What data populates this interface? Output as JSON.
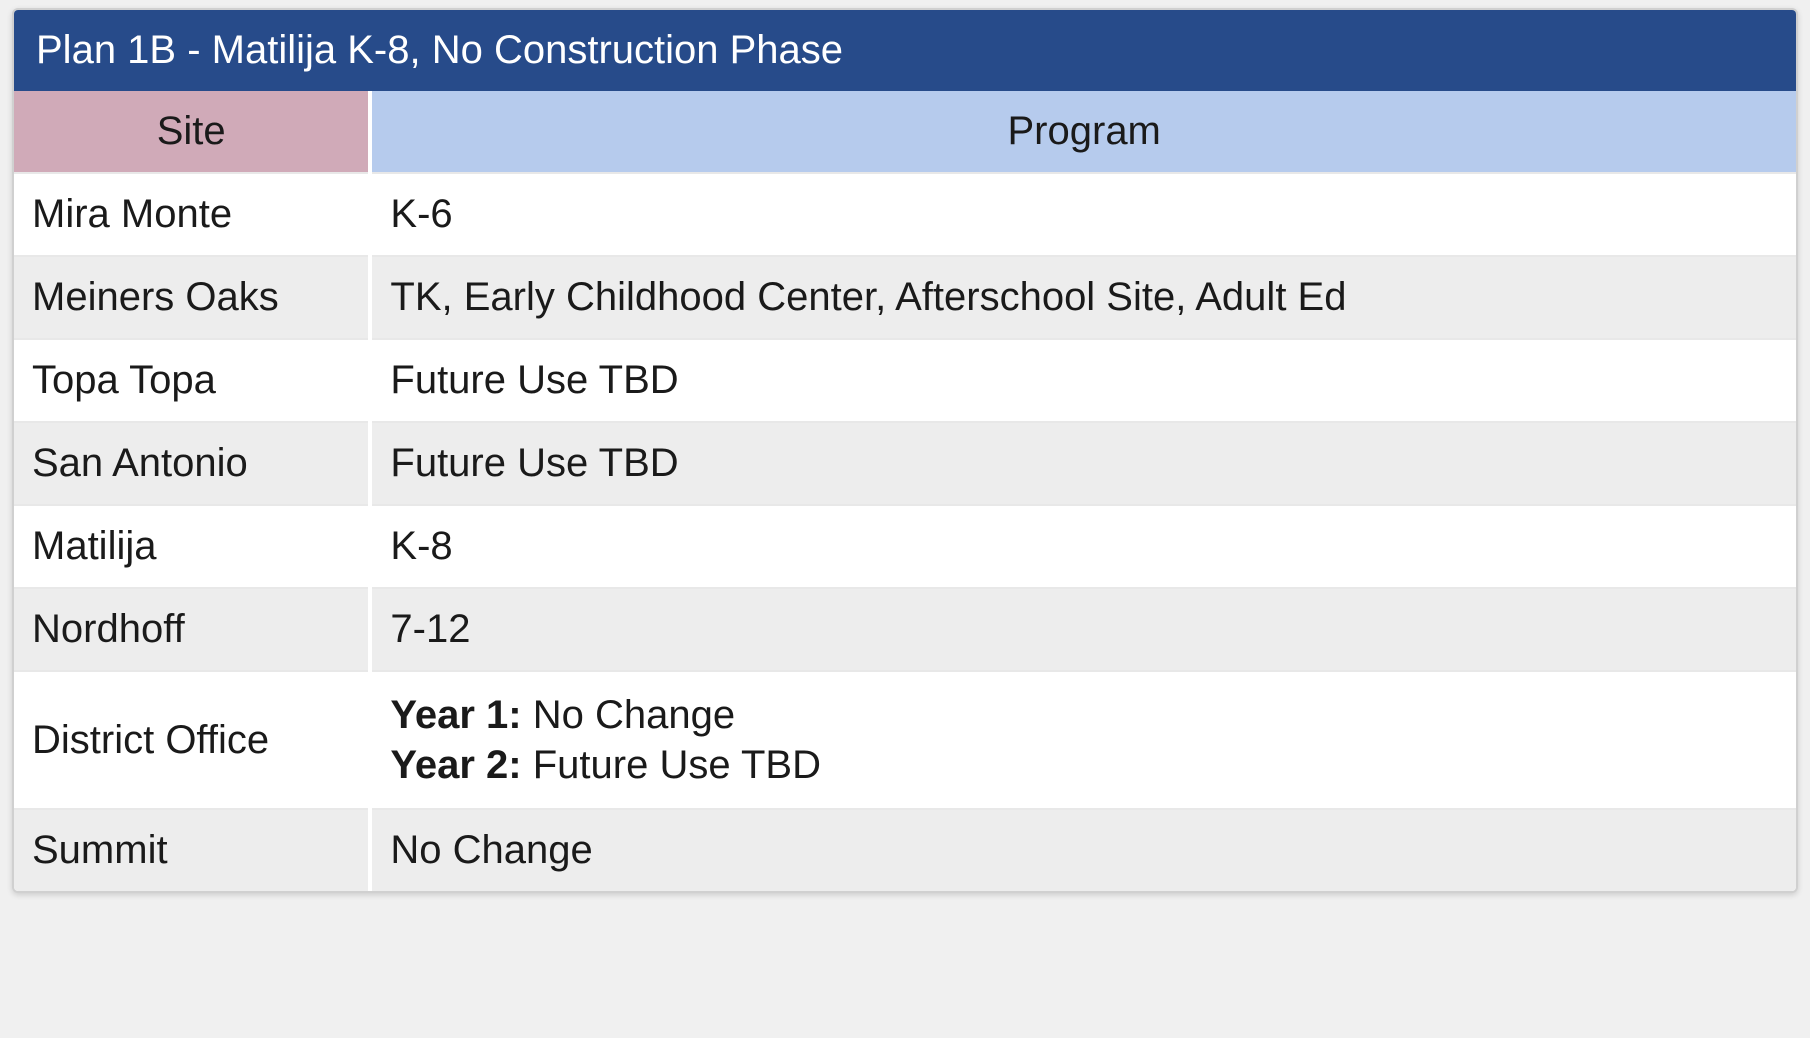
{
  "plan_table": {
    "type": "table",
    "title": "Plan 1B - Matilija K-8, No Construction Phase",
    "title_bg": "#274b8a",
    "title_color": "#ffffff",
    "columns": [
      {
        "label": "Site",
        "width_pct": 20,
        "header_bg": "#d0aab8",
        "align": "center"
      },
      {
        "label": "Program",
        "width_pct": 80,
        "header_bg": "#b6cbed",
        "align": "center"
      }
    ],
    "row_colors": {
      "odd": "#ffffff",
      "even": "#ededed"
    },
    "border_color": "#d0d0d0",
    "font_size": 40,
    "rows": [
      {
        "site": "Mira Monte",
        "program": "K-6"
      },
      {
        "site": "Meiners Oaks",
        "program": "TK, Early Childhood Center, Afterschool Site, Adult Ed"
      },
      {
        "site": "Topa Topa",
        "program": "Future Use TBD"
      },
      {
        "site": "San Antonio",
        "program": "Future Use TBD"
      },
      {
        "site": "Matilija",
        "program": "K-8"
      },
      {
        "site": "Nordhoff",
        "program": "7-12"
      },
      {
        "site": "District Office",
        "program_complex": [
          {
            "bold": "Year 1:",
            "text": " No Change"
          },
          {
            "bold": "Year 2:",
            "text": " Future Use TBD"
          }
        ]
      },
      {
        "site": "Summit",
        "program": "No Change"
      }
    ]
  }
}
